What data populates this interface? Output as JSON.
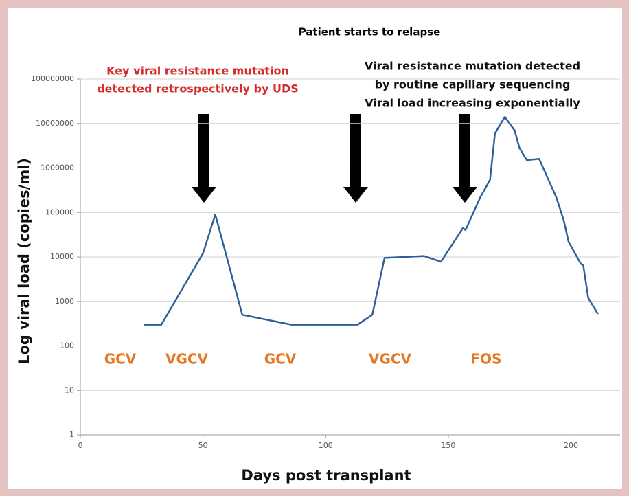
{
  "chart_data": {
    "type": "line",
    "title": "Patient starts to relapse",
    "xlabel": "Days post transplant",
    "ylabel": "Log viral load (copies/ml)",
    "x": [
      26,
      33,
      50,
      55,
      66,
      86,
      113,
      119,
      124,
      140,
      147,
      156,
      157,
      163,
      167,
      169,
      173,
      177,
      179,
      182,
      187,
      194,
      197,
      199,
      204,
      205,
      207,
      211
    ],
    "values": [
      300,
      300,
      12000,
      90000,
      500,
      300,
      300,
      500,
      9500,
      10500,
      7800,
      45000,
      40000,
      220000,
      540000,
      6000000,
      14000000,
      7000000,
      2800000,
      1500000,
      1600000,
      220000,
      68000,
      22000,
      7000,
      6500,
      1200,
      520
    ],
    "color": "#2f5f98",
    "xlim": [
      0,
      220
    ],
    "xticks": [
      0,
      50,
      100,
      150,
      200
    ],
    "ylim": [
      1,
      100000000
    ],
    "yticks": [
      1,
      10,
      100,
      1000,
      10000,
      100000,
      1000000,
      10000000,
      100000000
    ],
    "log_y": true,
    "grid": true,
    "annotations_red": [
      "Key viral resistance mutation",
      "detected retrospectively by UDS"
    ],
    "annotations_black": [
      "Viral resistance mutation detected",
      "by routine capillary sequencing",
      "Viral load increasing exponentially"
    ],
    "treatments": [
      "GCV",
      "VGCV",
      "GCV",
      "VGCV",
      "FOS"
    ],
    "treatment_color": "#e87722"
  }
}
